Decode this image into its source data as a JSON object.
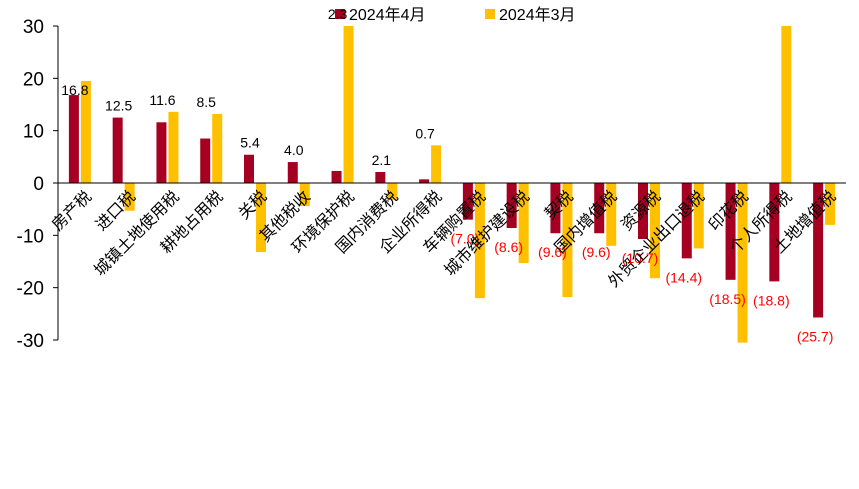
{
  "chart_data": {
    "type": "bar",
    "categories": [
      "房产税",
      "进口税",
      "城镇土地使用税",
      "耕地占用税",
      "关税",
      "其他税收",
      "环境保护税",
      "国内消费税",
      "企业所得税",
      "车辆购置税",
      "城市维护建设税",
      "契税",
      "国内增值税",
      "资源税",
      "外贸企业出口退税",
      "印花税",
      "个人所得税",
      "土地增值税"
    ],
    "series": [
      {
        "name": "2024年4月",
        "color": "#A50021",
        "values": [
          16.8,
          12.5,
          11.6,
          8.5,
          5.4,
          4.0,
          2.3,
          2.1,
          0.7,
          -7.0,
          -8.6,
          -9.6,
          -9.6,
          -10.7,
          -14.4,
          -18.5,
          -18.8,
          -25.7
        ],
        "labels": [
          "16.8",
          "12.5",
          "11.6",
          "8.5",
          "5.4",
          "4.0",
          "2.3",
          "2.1",
          "0.7",
          "(7.0)",
          "(8.6)",
          "(9.6)",
          "(9.6)",
          "(10.7)",
          "(14.4)",
          "(18.5)",
          "(18.8)",
          "(25.7)"
        ]
      },
      {
        "name": "2024年3月",
        "color": "#FFC000",
        "values": [
          19.5,
          -5.3,
          13.6,
          13.2,
          -13.2,
          -4.4,
          30.0,
          -3.2,
          7.2,
          -22.0,
          -15.3,
          -21.8,
          -12.0,
          -18.2,
          -12.5,
          -30.5,
          30.0,
          -8.0
        ]
      }
    ],
    "ylim": [
      -30,
      30
    ],
    "yticks": [
      30,
      20,
      10,
      0,
      -10,
      -20,
      -30
    ],
    "legend_position": "top-center",
    "grid": false,
    "positive_label_color": "#000000",
    "negative_label_color": "#FF0000"
  }
}
